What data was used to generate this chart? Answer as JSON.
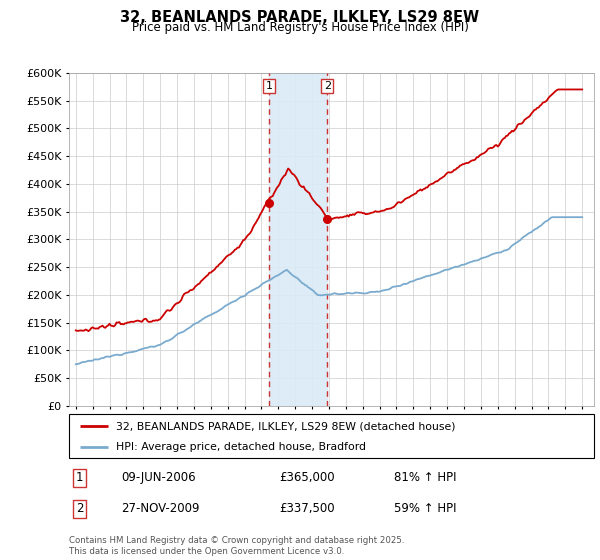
{
  "title": "32, BEANLANDS PARADE, ILKLEY, LS29 8EW",
  "subtitle": "Price paid vs. HM Land Registry's House Price Index (HPI)",
  "legend_entry1": "32, BEANLANDS PARADE, ILKLEY, LS29 8EW (detached house)",
  "legend_entry2": "HPI: Average price, detached house, Bradford",
  "annotation1_label": "1",
  "annotation1_date": "09-JUN-2006",
  "annotation1_price": "£365,000",
  "annotation1_hpi": "81% ↑ HPI",
  "annotation2_label": "2",
  "annotation2_date": "27-NOV-2009",
  "annotation2_price": "£337,500",
  "annotation2_hpi": "59% ↑ HPI",
  "footer": "Contains HM Land Registry data © Crown copyright and database right 2025.\nThis data is licensed under the Open Government Licence v3.0.",
  "red_color": "#cc0000",
  "blue_color": "#7aabcf",
  "shading_color": "#daeaf5",
  "vline_color": "#cc3333",
  "ylim_min": 0,
  "ylim_max": 600000,
  "year_start": 1995,
  "year_end": 2025,
  "sale1_year": 2006.44,
  "sale1_price": 365000,
  "sale2_year": 2009.9,
  "sale2_price": 337500
}
